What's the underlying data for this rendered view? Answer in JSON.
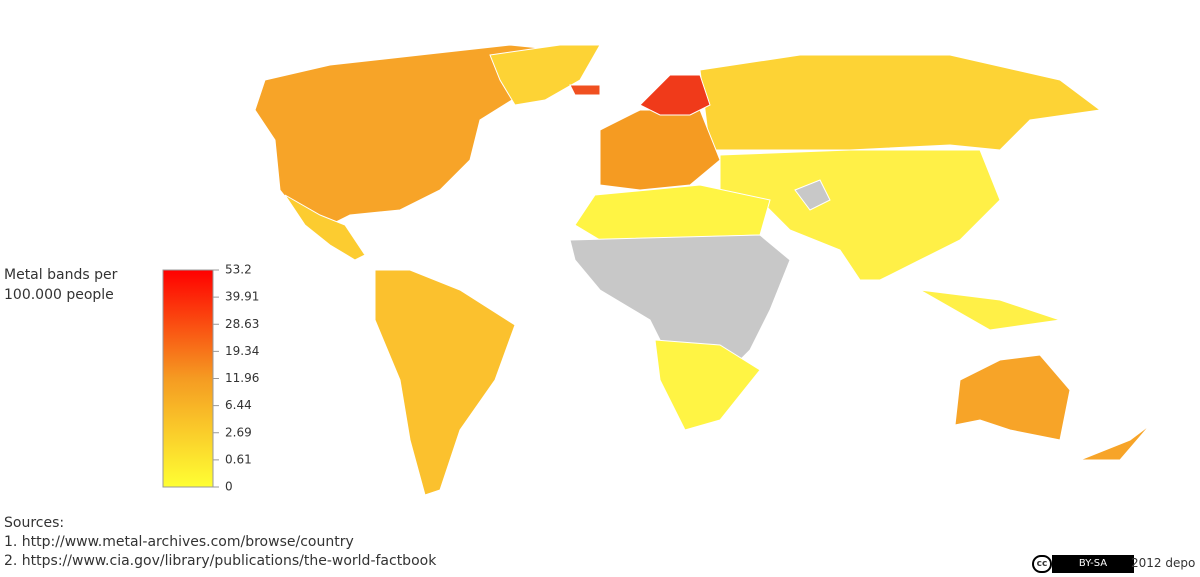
{
  "legend": {
    "title": "Metal bands per 100.000 people",
    "colors": [
      "#ff0000",
      "#f59b22",
      "#ffff33"
    ],
    "ticks": [
      53.2,
      39.91,
      28.63,
      19.34,
      11.96,
      6.44,
      2.69,
      0.61,
      0
    ]
  },
  "sources": {
    "heading": "Sources:",
    "lines": [
      "1. http://www.metal-archives.com/browse/country",
      "2. https://www.cia.gov/library/publications/the-world-factbook"
    ]
  },
  "footer": {
    "license_icon": "cc",
    "license": "BY-SA",
    "credit": "2012 depo"
  }
}
